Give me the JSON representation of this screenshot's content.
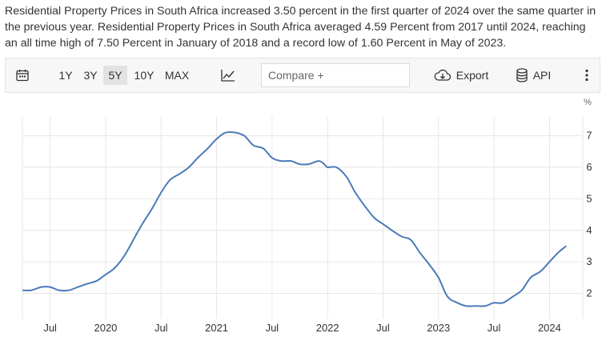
{
  "description": "Residential Property Prices in South Africa increased 3.50 percent in the first quarter of 2024 over the same quarter in the previous year. Residential Property Prices in South Africa averaged 4.59 Percent from 2017 until 2024, reaching an all time high of 7.50 Percent in January of 2018 and a record low of 1.60 Percent in May of 2023.",
  "toolbar": {
    "ranges": [
      "1Y",
      "3Y",
      "5Y",
      "10Y",
      "MAX"
    ],
    "active_range": "5Y",
    "compare_placeholder": "Compare +",
    "export_label": "Export",
    "api_label": "API"
  },
  "icons": {
    "calendar": "calendar-icon",
    "chart_type": "line-chart-icon",
    "export": "cloud-download-icon",
    "api": "database-icon",
    "more": "more-vertical-icon"
  },
  "colors": {
    "line": "#4a7ab8",
    "grid": "#e6e6e6",
    "text": "#333333"
  },
  "chart_data": {
    "type": "line",
    "unit": "%",
    "ylim": [
      1.2,
      7.6
    ],
    "yticks": [
      2,
      3,
      4,
      5,
      6,
      7
    ],
    "xlim": [
      2019.25,
      2024.3
    ],
    "xticks": [
      {
        "x": 2019.5,
        "label": "Jul"
      },
      {
        "x": 2020.0,
        "label": "2020"
      },
      {
        "x": 2020.5,
        "label": "Jul"
      },
      {
        "x": 2021.0,
        "label": "2021"
      },
      {
        "x": 2021.5,
        "label": "Jul"
      },
      {
        "x": 2022.0,
        "label": "2022"
      },
      {
        "x": 2022.5,
        "label": "Jul"
      },
      {
        "x": 2023.0,
        "label": "2023"
      },
      {
        "x": 2023.5,
        "label": "Jul"
      },
      {
        "x": 2024.0,
        "label": "2024"
      }
    ],
    "grid": true,
    "legend": "none",
    "series": [
      {
        "values": [
          [
            2019.25,
            2.1
          ],
          [
            2019.33,
            2.1
          ],
          [
            2019.42,
            2.2
          ],
          [
            2019.5,
            2.2
          ],
          [
            2019.58,
            2.1
          ],
          [
            2019.67,
            2.1
          ],
          [
            2019.75,
            2.2
          ],
          [
            2019.83,
            2.3
          ],
          [
            2019.92,
            2.4
          ],
          [
            2020.0,
            2.6
          ],
          [
            2020.08,
            2.8
          ],
          [
            2020.17,
            3.2
          ],
          [
            2020.25,
            3.7
          ],
          [
            2020.33,
            4.2
          ],
          [
            2020.42,
            4.7
          ],
          [
            2020.5,
            5.2
          ],
          [
            2020.58,
            5.6
          ],
          [
            2020.67,
            5.8
          ],
          [
            2020.75,
            6.0
          ],
          [
            2020.83,
            6.3
          ],
          [
            2020.92,
            6.6
          ],
          [
            2021.0,
            6.9
          ],
          [
            2021.08,
            7.1
          ],
          [
            2021.17,
            7.1
          ],
          [
            2021.25,
            7.0
          ],
          [
            2021.33,
            6.7
          ],
          [
            2021.42,
            6.6
          ],
          [
            2021.5,
            6.3
          ],
          [
            2021.58,
            6.2
          ],
          [
            2021.67,
            6.2
          ],
          [
            2021.75,
            6.1
          ],
          [
            2021.83,
            6.1
          ],
          [
            2021.92,
            6.2
          ],
          [
            2021.97,
            6.1
          ],
          [
            2022.0,
            6.0
          ],
          [
            2022.08,
            6.0
          ],
          [
            2022.17,
            5.7
          ],
          [
            2022.25,
            5.2
          ],
          [
            2022.33,
            4.8
          ],
          [
            2022.42,
            4.4
          ],
          [
            2022.5,
            4.2
          ],
          [
            2022.58,
            4.0
          ],
          [
            2022.67,
            3.8
          ],
          [
            2022.75,
            3.7
          ],
          [
            2022.83,
            3.3
          ],
          [
            2022.92,
            2.9
          ],
          [
            2023.0,
            2.5
          ],
          [
            2023.08,
            1.9
          ],
          [
            2023.17,
            1.7
          ],
          [
            2023.25,
            1.6
          ],
          [
            2023.33,
            1.6
          ],
          [
            2023.42,
            1.6
          ],
          [
            2023.5,
            1.7
          ],
          [
            2023.58,
            1.7
          ],
          [
            2023.67,
            1.9
          ],
          [
            2023.75,
            2.1
          ],
          [
            2023.83,
            2.5
          ],
          [
            2023.92,
            2.7
          ],
          [
            2024.0,
            3.0
          ],
          [
            2024.08,
            3.3
          ],
          [
            2024.15,
            3.5
          ]
        ]
      }
    ]
  }
}
